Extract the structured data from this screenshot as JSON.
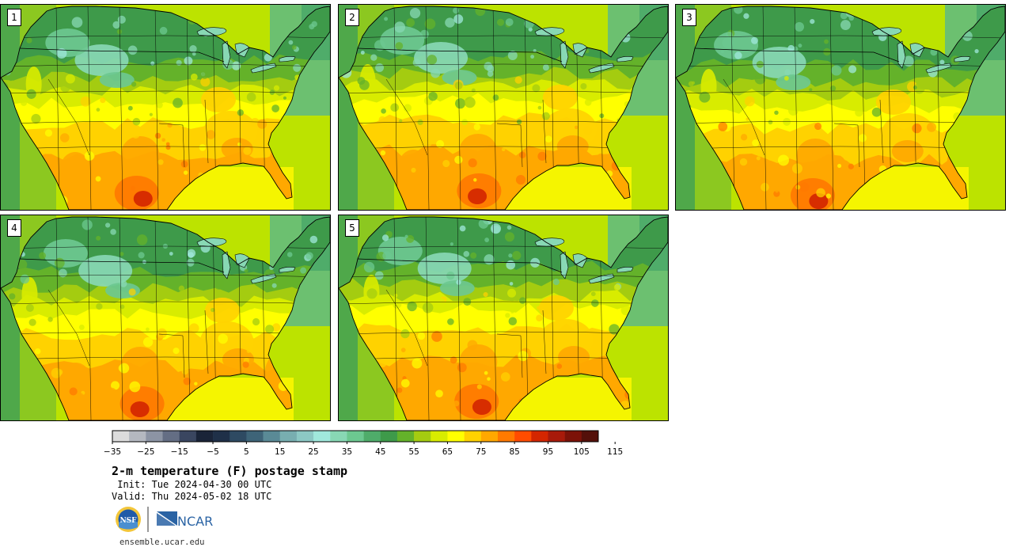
{
  "panels": [
    {
      "label": "1",
      "warm_shift": 0
    },
    {
      "label": "2",
      "warm_shift": -1
    },
    {
      "label": "3",
      "warm_shift": 1
    },
    {
      "label": "4",
      "warm_shift": 0
    },
    {
      "label": "5",
      "warm_shift": -1
    }
  ],
  "colorbar": {
    "colors": [
      "#dcdcdc",
      "#b4b8c0",
      "#8c94a4",
      "#646e84",
      "#3a4660",
      "#1a2438",
      "#1f3048",
      "#2e4a62",
      "#3e6478",
      "#5a8a96",
      "#78aeb0",
      "#8cc8c4",
      "#a0e8dc",
      "#88d8b4",
      "#6cc890",
      "#4fac6a",
      "#3e9a4a",
      "#64b22a",
      "#a4cc10",
      "#d8ec00",
      "#ffff00",
      "#ffd200",
      "#ffa800",
      "#ff7a00",
      "#ff4c00",
      "#d42600",
      "#a81a0a",
      "#7c1208",
      "#54100a"
    ],
    "tick_labels": [
      "−35",
      "−25",
      "−15",
      "−5",
      "5",
      "15",
      "25",
      "35",
      "45",
      "55",
      "65",
      "75",
      "85",
      "95",
      "105",
      "115"
    ]
  },
  "title": "2-m temperature (F) postage stamp",
  "init_line": " Init: Tue 2024-04-30 00 UTC",
  "valid_line": "Valid: Thu 2024-05-02 18 UTC",
  "logos": {
    "nsf": "NSF",
    "ncar": "NCAR"
  },
  "website": "ensemble.ucar.edu"
}
